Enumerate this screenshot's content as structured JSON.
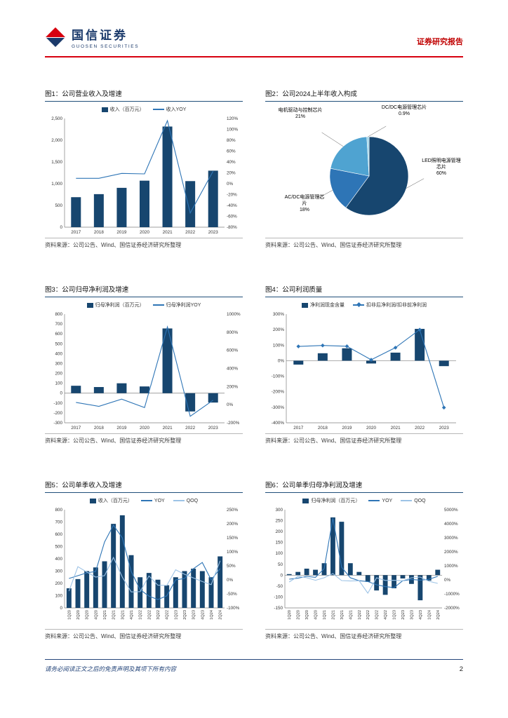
{
  "header": {
    "brand_cn": "国信证券",
    "brand_en": "GUOSEN SECURITIES",
    "report_label": "证券研究报告"
  },
  "palette": {
    "bar_navy": "#17466F",
    "line_blue": "#2E75B6",
    "line_light_blue": "#9DC3E6",
    "accent_red": "#D7000F",
    "navy_text": "#1B3A6B"
  },
  "source_note": "资料来源：公司公告、Wind、国信证券经济研究所整理",
  "footer": {
    "disclaimer": "请务必阅读正文之后的免责声明及其项下所有内容",
    "page": "2"
  },
  "figures": [
    {
      "title": "图1：公司营业收入及增速"
    },
    {
      "title": "图2：公司2024上半年收入构成"
    },
    {
      "title": "图3：公司归母净利润及增速"
    },
    {
      "title": "图4：公司利润质量"
    },
    {
      "title": "图5：公司单季收入及增速"
    },
    {
      "title": "图6：公司单季归母净利润及增速"
    }
  ],
  "chart_data": [
    {
      "figure": "图1",
      "type": "bar",
      "title": "公司营业收入及增速",
      "categories": [
        "2017",
        "2018",
        "2019",
        "2020",
        "2021",
        "2022",
        "2023"
      ],
      "series": [
        {
          "name": "收入（百万元）",
          "kind": "bar",
          "axis": "left",
          "color": "#17466F",
          "values": [
            690,
            760,
            905,
            1070,
            2315,
            1060,
            1300
          ]
        },
        {
          "name": "收入YOY",
          "kind": "line",
          "axis": "right",
          "color": "#2E75B6",
          "values": [
            10,
            10,
            19,
            18,
            116,
            -54,
            23
          ]
        }
      ],
      "left_axis": {
        "min": 0,
        "max": 2500,
        "step": 500,
        "format": "thousands"
      },
      "right_axis": {
        "min": -80,
        "max": 120,
        "step": 20,
        "format": "percent"
      },
      "legend_position": "top",
      "grid": false
    },
    {
      "figure": "图2",
      "type": "pie",
      "title": "公司2024上半年收入构成",
      "slices": [
        {
          "label": "LED照明电源管理芯片",
          "value": 60,
          "pct_label": "60%",
          "color": "#17466F",
          "label_side": "right"
        },
        {
          "label": "AC/DC电源管理芯片",
          "value": 18,
          "pct_label": "18%",
          "color": "#2E75B6",
          "label_side": "bottom-left"
        },
        {
          "label": "电机驱动与控制芯片",
          "value": 21,
          "pct_label": "21%",
          "color": "#4FA3D1",
          "label_side": "top-left"
        },
        {
          "label": "DC/DC电源管理芯片",
          "value": 0.9,
          "pct_label": "0.9%",
          "color": "#9DD4E8",
          "label_side": "top-right"
        }
      ],
      "legend_position": "none",
      "grid": false
    },
    {
      "figure": "图3",
      "type": "bar",
      "title": "公司归母净利润及增速",
      "categories": [
        "2017",
        "2018",
        "2019",
        "2020",
        "2021",
        "2022",
        "2023"
      ],
      "series": [
        {
          "name": "归母净利润（百万元）",
          "kind": "bar",
          "axis": "left",
          "color": "#17466F",
          "values": [
            75,
            62,
            100,
            68,
            655,
            -185,
            -95
          ]
        },
        {
          "name": "归母净利润YOY",
          "kind": "line",
          "axis": "right",
          "color": "#2E75B6",
          "values": [
            25,
            -18,
            62,
            -32,
            860,
            -128,
            49
          ]
        }
      ],
      "left_axis": {
        "min": -300,
        "max": 800,
        "step": 100,
        "format": "plain"
      },
      "right_axis": {
        "min": -200,
        "max": 1000,
        "step": 200,
        "format": "percent"
      },
      "legend_position": "top",
      "grid": false
    },
    {
      "figure": "图4",
      "type": "line",
      "title": "公司利润质量",
      "categories": [
        "2017",
        "2018",
        "2019",
        "2020",
        "2021",
        "2022",
        "2023"
      ],
      "series": [
        {
          "name": "净利润现金含量",
          "kind": "bar",
          "axis": "left",
          "color": "#17466F",
          "values": [
            -25,
            48,
            80,
            -18,
            52,
            205,
            -35
          ]
        },
        {
          "name": "扣非后净利润/扣非前净利润",
          "kind": "line",
          "axis": "left",
          "color": "#2E75B6",
          "marker": "diamond",
          "values": [
            92,
            98,
            93,
            6,
            84,
            200,
            -302
          ]
        }
      ],
      "left_axis": {
        "min": -400,
        "max": 300,
        "step": 100,
        "format": "percent"
      },
      "legend_position": "top",
      "grid": false
    },
    {
      "figure": "图5",
      "type": "bar",
      "title": "公司单季收入及增速",
      "categories": [
        "1Q20",
        "2Q20",
        "3Q20",
        "4Q20",
        "1Q21",
        "2Q21",
        "3Q21",
        "4Q21",
        "1Q22",
        "2Q22",
        "3Q22",
        "4Q22",
        "1Q23",
        "2Q23",
        "3Q23",
        "4Q23",
        "1Q24",
        "2Q24"
      ],
      "series": [
        {
          "name": "收入（百万元）",
          "kind": "bar",
          "axis": "left",
          "color": "#17466F",
          "values": [
            160,
            235,
            300,
            330,
            380,
            685,
            755,
            430,
            250,
            285,
            230,
            185,
            250,
            300,
            320,
            300,
            250,
            420
          ]
        },
        {
          "name": "YOY",
          "kind": "line",
          "axis": "right",
          "color": "#2E75B6",
          "values": [
            5,
            15,
            25,
            30,
            135,
            195,
            150,
            30,
            -35,
            -58,
            -70,
            -57,
            0,
            5,
            40,
            62,
            0,
            40
          ]
        },
        {
          "name": "QOQ",
          "kind": "line",
          "axis": "right",
          "color": "#9DC3E6",
          "values": [
            -40,
            47,
            28,
            10,
            15,
            80,
            10,
            -43,
            -42,
            14,
            -19,
            -20,
            36,
            20,
            7,
            -6,
            -17,
            68
          ]
        }
      ],
      "left_axis": {
        "min": 0,
        "max": 800,
        "step": 100,
        "format": "plain"
      },
      "right_axis": {
        "min": -100,
        "max": 250,
        "step": 50,
        "format": "percent"
      },
      "x_label_rotate": true,
      "legend_position": "top",
      "grid": false
    },
    {
      "figure": "图6",
      "type": "bar",
      "title": "公司单季归母净利润及增速",
      "categories": [
        "1Q20",
        "2Q20",
        "3Q20",
        "4Q20",
        "1Q21",
        "2Q21",
        "3Q21",
        "4Q21",
        "1Q22",
        "2Q22",
        "3Q22",
        "4Q22",
        "1Q23",
        "2Q23",
        "3Q23",
        "4Q23",
        "1Q24",
        "2Q24"
      ],
      "series": [
        {
          "name": "归母净利润（百万元）",
          "kind": "bar",
          "axis": "left",
          "color": "#17466F",
          "values": [
            5,
            15,
            30,
            25,
            55,
            265,
            245,
            55,
            15,
            -30,
            -70,
            -90,
            -60,
            -15,
            -40,
            -115,
            -25,
            25
          ]
        },
        {
          "name": "YOY",
          "kind": "line",
          "axis": "right",
          "color": "#2E75B6",
          "values": [
            50,
            120,
            250,
            180,
            800,
            4400,
            900,
            150,
            -60,
            -120,
            -350,
            -480,
            -550,
            -60,
            30,
            -20,
            40,
            250
          ]
        },
        {
          "name": "QOQ",
          "kind": "line",
          "axis": "right",
          "color": "#9DC3E6",
          "values": [
            -150,
            250,
            150,
            -30,
            150,
            450,
            -50,
            -80,
            -60,
            -950,
            150,
            -40,
            -30,
            -60,
            150,
            200,
            -100,
            -250
          ]
        }
      ],
      "left_axis": {
        "min": -150,
        "max": 300,
        "step": 50,
        "format": "plain"
      },
      "right_axis": {
        "min": -2000,
        "max": 5000,
        "step": 1000,
        "format": "percent"
      },
      "x_label_rotate": true,
      "legend_position": "top",
      "grid": false
    }
  ]
}
